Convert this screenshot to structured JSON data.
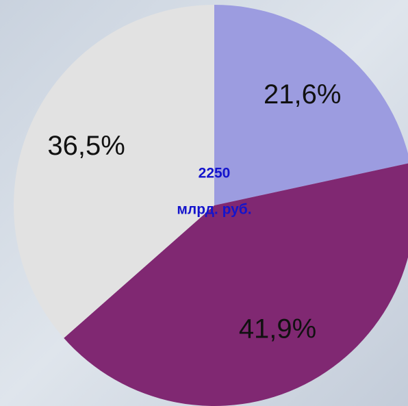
{
  "chart_data": {
    "type": "pie",
    "categories": [
      null,
      null,
      null
    ],
    "values": [
      21.6,
      41.9,
      36.5
    ],
    "value_labels": [
      "21,6%",
      "41,9%",
      "36,5%"
    ],
    "colors": [
      "#9c9ce0",
      "#802872",
      "#e2e2e2"
    ],
    "total": 2250,
    "total_unit": "млрд. руб."
  }
}
